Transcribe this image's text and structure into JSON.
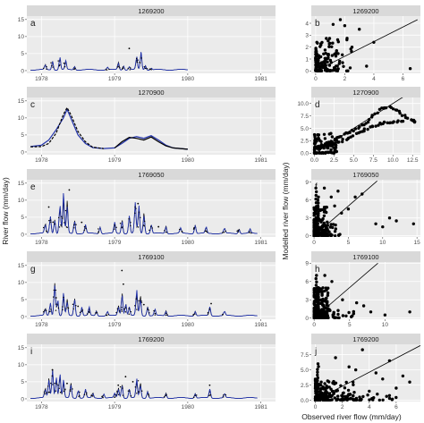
{
  "figure": {
    "left_ylabel": "River flow (mm/day)",
    "right_ylabel": "Modelled river flow (mm/day)",
    "right_xlabel": "Observed river flow (mm/day)"
  },
  "colors": {
    "panel_bg": "#ebebeb",
    "strip_bg": "#d9d9d9",
    "grid": "#ffffff",
    "modelled": "#2233aa",
    "observed": "#000000"
  },
  "chart_data": [
    {
      "type": "line",
      "panel": "a",
      "station": "1269200",
      "xlim": [
        1977.8,
        1981.2
      ],
      "x_ticks": [
        1978,
        1979,
        1980,
        1981
      ],
      "x_tick_labels": [
        "1978",
        "1979",
        "1980",
        "1981"
      ],
      "ylim": [
        -0.8,
        16
      ],
      "y_ticks": [
        0,
        5,
        10,
        15
      ],
      "x_extent": [
        1977.85,
        1980.0
      ],
      "peaks": [
        [
          1978.05,
          1.0
        ],
        [
          1978.15,
          2.0
        ],
        [
          1978.25,
          3.0
        ],
        [
          1978.33,
          2.0
        ],
        [
          1978.45,
          0.8
        ],
        [
          1978.9,
          0.6
        ],
        [
          1979.05,
          1.5
        ],
        [
          1979.12,
          1.0
        ],
        [
          1979.2,
          0.7
        ],
        [
          1979.3,
          3.0
        ],
        [
          1979.36,
          4.0
        ],
        [
          1979.42,
          1.0
        ],
        [
          1979.5,
          0.4
        ]
      ],
      "outliers": [
        [
          1979.2,
          6.5
        ]
      ]
    },
    {
      "type": "line",
      "panel": "c",
      "station": "1270900",
      "xlim": [
        1977.8,
        1981.2
      ],
      "x_ticks": [
        1978,
        1979,
        1980,
        1981
      ],
      "x_tick_labels": [
        "1978",
        "1979",
        "1980",
        "1981"
      ],
      "ylim": [
        -0.8,
        16
      ],
      "y_ticks": [
        0,
        5,
        10,
        15
      ],
      "modelled": [
        [
          1977.85,
          1.6
        ],
        [
          1978.0,
          2.0
        ],
        [
          1978.1,
          3.5
        ],
        [
          1978.2,
          6.5
        ],
        [
          1978.3,
          10.0
        ],
        [
          1978.35,
          12.5
        ],
        [
          1978.4,
          10.0
        ],
        [
          1978.5,
          5.0
        ],
        [
          1978.6,
          2.5
        ],
        [
          1978.7,
          1.3
        ],
        [
          1978.85,
          1.0
        ],
        [
          1979.0,
          1.2
        ],
        [
          1979.1,
          2.5
        ],
        [
          1979.2,
          4.0
        ],
        [
          1979.3,
          4.5
        ],
        [
          1979.4,
          4.0
        ],
        [
          1979.5,
          4.8
        ],
        [
          1979.6,
          3.5
        ],
        [
          1979.7,
          2.0
        ],
        [
          1979.8,
          1.2
        ],
        [
          1980.0,
          0.8
        ]
      ],
      "observed": [
        [
          1977.85,
          1.5
        ],
        [
          1978.0,
          1.6
        ],
        [
          1978.1,
          2.5
        ],
        [
          1978.2,
          5.5
        ],
        [
          1978.3,
          11.0
        ],
        [
          1978.35,
          13.0
        ],
        [
          1978.4,
          11.0
        ],
        [
          1978.5,
          6.0
        ],
        [
          1978.6,
          3.0
        ],
        [
          1978.7,
          1.4
        ],
        [
          1978.85,
          1.0
        ],
        [
          1979.0,
          1.2
        ],
        [
          1979.1,
          3.0
        ],
        [
          1979.2,
          4.3
        ],
        [
          1979.3,
          4.0
        ],
        [
          1979.4,
          3.5
        ],
        [
          1979.5,
          4.4
        ],
        [
          1979.6,
          3.0
        ],
        [
          1979.7,
          1.8
        ],
        [
          1979.8,
          1.2
        ],
        [
          1980.0,
          0.8
        ]
      ],
      "obs_gap": [
        1978.85,
        1979.0
      ]
    },
    {
      "type": "line",
      "panel": "e",
      "station": "1769050",
      "xlim": [
        1977.8,
        1981.2
      ],
      "x_ticks": [
        1978,
        1979,
        1980,
        1981
      ],
      "x_tick_labels": [
        "1978",
        "1979",
        "1980",
        "1981"
      ],
      "ylim": [
        -0.8,
        16
      ],
      "y_ticks": [
        0,
        5,
        10,
        15
      ],
      "x_extent": [
        1977.85,
        1980.95
      ],
      "peaks": [
        [
          1978.05,
          2.0
        ],
        [
          1978.12,
          4.0
        ],
        [
          1978.18,
          3.0
        ],
        [
          1978.25,
          7.0
        ],
        [
          1978.3,
          9.0
        ],
        [
          1978.35,
          6.0
        ],
        [
          1978.45,
          3.0
        ],
        [
          1978.6,
          2.0
        ],
        [
          1978.8,
          1.5
        ],
        [
          1979.0,
          2.5
        ],
        [
          1979.1,
          3.0
        ],
        [
          1979.2,
          4.0
        ],
        [
          1979.28,
          7.0
        ],
        [
          1979.33,
          6.5
        ],
        [
          1979.4,
          4.0
        ],
        [
          1979.5,
          2.0
        ],
        [
          1979.7,
          1.5
        ],
        [
          1979.9,
          1.2
        ],
        [
          1980.1,
          1.8
        ],
        [
          1980.25,
          1.5
        ],
        [
          1980.5,
          1.2
        ],
        [
          1980.7,
          1.0
        ],
        [
          1980.85,
          1.0
        ]
      ],
      "outliers": [
        [
          1978.38,
          13.0
        ],
        [
          1978.1,
          8.0
        ],
        [
          1979.32,
          9.0
        ],
        [
          1978.55,
          3.5
        ],
        [
          1979.6,
          2.2
        ]
      ]
    },
    {
      "type": "line",
      "panel": "g",
      "station": "1769100",
      "xlim": [
        1977.8,
        1981.2
      ],
      "x_ticks": [
        1978,
        1979,
        1980,
        1981
      ],
      "x_tick_labels": [
        "1978",
        "1979",
        "1980",
        "1981"
      ],
      "ylim": [
        -0.8,
        16
      ],
      "y_ticks": [
        0,
        5,
        10,
        15
      ],
      "x_extent": [
        1977.85,
        1980.95
      ],
      "peaks": [
        [
          1978.05,
          1.5
        ],
        [
          1978.12,
          3.0
        ],
        [
          1978.18,
          7.0
        ],
        [
          1978.22,
          4.0
        ],
        [
          1978.3,
          5.0
        ],
        [
          1978.35,
          3.0
        ],
        [
          1978.45,
          4.0
        ],
        [
          1978.55,
          2.0
        ],
        [
          1978.65,
          2.0
        ],
        [
          1978.75,
          1.0
        ],
        [
          1978.9,
          1.0
        ],
        [
          1979.05,
          2.0
        ],
        [
          1979.1,
          5.0
        ],
        [
          1979.15,
          3.0
        ],
        [
          1979.2,
          2.0
        ],
        [
          1979.3,
          6.0
        ],
        [
          1979.35,
          4.0
        ],
        [
          1979.45,
          2.0
        ],
        [
          1979.55,
          1.5
        ],
        [
          1979.7,
          1.0
        ],
        [
          1980.1,
          1.0
        ],
        [
          1980.3,
          2.0
        ],
        [
          1980.5,
          1.0
        ]
      ],
      "outliers": [
        [
          1979.1,
          13.5
        ],
        [
          1979.12,
          9.5
        ],
        [
          1978.2,
          5.5
        ],
        [
          1978.5,
          3.0
        ],
        [
          1980.32,
          3.8
        ],
        [
          1979.4,
          3.5
        ]
      ]
    },
    {
      "type": "line",
      "panel": "i",
      "station": "1769200",
      "xlim": [
        1977.8,
        1981.2
      ],
      "x_ticks": [
        1978,
        1979,
        1980,
        1981
      ],
      "x_tick_labels": [
        "1978",
        "1979",
        "1980",
        "1981"
      ],
      "ylim": [
        -0.8,
        16
      ],
      "y_ticks": [
        0,
        5,
        10,
        15
      ],
      "x_extent": [
        1977.85,
        1980.95
      ],
      "peaks": [
        [
          1978.05,
          2.0
        ],
        [
          1978.1,
          4.0
        ],
        [
          1978.15,
          6.5
        ],
        [
          1978.2,
          5.0
        ],
        [
          1978.25,
          6.0
        ],
        [
          1978.3,
          4.0
        ],
        [
          1978.4,
          3.0
        ],
        [
          1978.5,
          2.0
        ],
        [
          1978.6,
          2.0
        ],
        [
          1978.7,
          1.0
        ],
        [
          1978.85,
          1.0
        ],
        [
          1979.0,
          1.0
        ],
        [
          1979.05,
          2.0
        ],
        [
          1979.1,
          3.0
        ],
        [
          1979.2,
          2.0
        ],
        [
          1979.3,
          4.5
        ],
        [
          1979.35,
          3.0
        ],
        [
          1979.45,
          1.5
        ],
        [
          1979.7,
          1.0
        ],
        [
          1980.1,
          1.0
        ],
        [
          1980.3,
          2.0
        ],
        [
          1980.5,
          1.0
        ]
      ],
      "outliers": [
        [
          1978.15,
          8.5
        ],
        [
          1979.15,
          6.5
        ],
        [
          1979.25,
          5.0
        ],
        [
          1978.35,
          4.5
        ],
        [
          1980.3,
          4.0
        ],
        [
          1979.05,
          4.0
        ]
      ]
    },
    {
      "type": "scatter",
      "panel": "b",
      "station": "1269200",
      "xlim": [
        -0.3,
        7.2
      ],
      "x_ticks": [
        0,
        2,
        4,
        6
      ],
      "ylim": [
        -0.2,
        4.6
      ],
      "y_ticks": [
        0,
        1,
        2,
        3,
        4
      ],
      "line_end": [
        7.0,
        4.3
      ],
      "cloud": [
        {
          "x": [
            0,
            2.5
          ],
          "y": [
            0,
            3.0
          ],
          "n": 100
        },
        {
          "x": [
            0,
            1
          ],
          "y": [
            0,
            1.5
          ],
          "n": 60
        }
      ],
      "points": [
        [
          3.0,
          3.5
        ],
        [
          1.7,
          4.3
        ],
        [
          2.5,
          2.0
        ],
        [
          2.0,
          3.8
        ],
        [
          1.2,
          3.9
        ],
        [
          6.5,
          0.2
        ],
        [
          4.0,
          2.4
        ],
        [
          3.5,
          0.4
        ]
      ]
    },
    {
      "type": "scatter",
      "panel": "d",
      "station": "1270900",
      "xlim": [
        -0.4,
        13.5
      ],
      "x_ticks": [
        0,
        2.5,
        5,
        7.5,
        10,
        12.5
      ],
      "x_tick_labels": [
        "0.0",
        "2.5",
        "5.0",
        "7.5",
        "10.0",
        "12.5"
      ],
      "ylim": [
        -0.3,
        11.2
      ],
      "y_ticks": [
        0,
        2.5,
        5,
        7.5,
        10
      ],
      "y_tick_labels": [
        "0.0",
        "2.5",
        "5.0",
        "7.5",
        "10.0"
      ],
      "line_end": [
        11.5,
        11.5
      ],
      "curve": [
        [
          0.2,
          1.2
        ],
        [
          0.8,
          1.4
        ],
        [
          1.5,
          2.0
        ],
        [
          2.5,
          2.8
        ],
        [
          3.5,
          3.5
        ],
        [
          4.5,
          4.3
        ],
        [
          5.5,
          5.0
        ],
        [
          6.5,
          6.0
        ],
        [
          7.5,
          7.5
        ],
        [
          8.5,
          9.0
        ],
        [
          9.5,
          9.3
        ],
        [
          10.5,
          8.5
        ],
        [
          11.5,
          7.5
        ],
        [
          12.5,
          6.5
        ],
        [
          13.0,
          6.3
        ]
      ],
      "curve2": [
        [
          0.5,
          0.8
        ],
        [
          1.5,
          1.2
        ],
        [
          2.5,
          1.8
        ],
        [
          3.5,
          2.5
        ],
        [
          4.5,
          3.2
        ],
        [
          5.5,
          4.0
        ],
        [
          6.5,
          4.8
        ],
        [
          7.5,
          5.5
        ],
        [
          8.5,
          6.0
        ],
        [
          9.5,
          6.2
        ],
        [
          10.5,
          6.3
        ],
        [
          11.5,
          6.4
        ]
      ],
      "cloud": [
        {
          "x": [
            0,
            3
          ],
          "y": [
            0,
            4
          ],
          "n": 80
        }
      ]
    },
    {
      "type": "scatter",
      "panel": "f",
      "station": "1769050",
      "xlim": [
        -0.4,
        15.5
      ],
      "x_ticks": [
        0,
        5,
        10,
        15
      ],
      "ylim": [
        -0.2,
        9.4
      ],
      "y_ticks": [
        0,
        3,
        6,
        9
      ],
      "line_end": [
        9.2,
        9.2
      ],
      "cloud": [
        {
          "x": [
            0,
            2
          ],
          "y": [
            0,
            5
          ],
          "n": 150
        },
        {
          "x": [
            0,
            4
          ],
          "y": [
            0,
            2
          ],
          "n": 60
        }
      ],
      "points": [
        [
          1.5,
          8.0
        ],
        [
          2.5,
          6.5
        ],
        [
          3.0,
          5.0
        ],
        [
          4.0,
          3.8
        ],
        [
          6.0,
          6.5
        ],
        [
          7.0,
          7.0
        ],
        [
          9.0,
          2.0
        ],
        [
          10.0,
          1.5
        ],
        [
          12.0,
          2.5
        ],
        [
          14.5,
          2.0
        ],
        [
          11.0,
          3.0
        ],
        [
          5.0,
          4.5
        ],
        [
          3.5,
          7.5
        ]
      ],
      "verticals": [
        [
          0.3,
          8.0
        ],
        [
          0.6,
          6.5
        ]
      ]
    },
    {
      "type": "scatter",
      "panel": "h",
      "station": "1769100",
      "xlim": [
        -0.4,
        15.0
      ],
      "x_ticks": [
        0,
        5,
        10
      ],
      "ylim": [
        -0.2,
        9.2
      ],
      "y_ticks": [
        0,
        3,
        6,
        9
      ],
      "line_end": [
        9.0,
        9.0
      ],
      "cloud": [
        {
          "x": [
            0,
            2
          ],
          "y": [
            0,
            5
          ],
          "n": 150
        },
        {
          "x": [
            0,
            6
          ],
          "y": [
            0,
            1.5
          ],
          "n": 60
        }
      ],
      "points": [
        [
          1.5,
          7.0
        ],
        [
          2.5,
          6.0
        ],
        [
          4.0,
          3.0
        ],
        [
          6.0,
          2.5
        ],
        [
          13.5,
          1.0
        ],
        [
          8.0,
          1.0
        ],
        [
          10.0,
          0.5
        ],
        [
          7.0,
          2.0
        ]
      ],
      "verticals": [
        [
          0.3,
          7.0
        ],
        [
          0.6,
          5.0
        ]
      ]
    },
    {
      "type": "scatter",
      "panel": "j",
      "station": "1769200",
      "xlim": [
        -0.3,
        7.8
      ],
      "x_ticks": [
        0,
        2,
        4,
        6
      ],
      "ylim": [
        -0.2,
        9.2
      ],
      "y_ticks": [
        0,
        2.5,
        5,
        7.5
      ],
      "y_tick_labels": [
        "0.0",
        "2.5",
        "5.0",
        "7.5"
      ],
      "line_end": [
        7.8,
        9.0
      ],
      "cloud": [
        {
          "x": [
            0,
            3.5
          ],
          "y": [
            0,
            3.5
          ],
          "n": 140
        },
        {
          "x": [
            0,
            6
          ],
          "y": [
            0,
            1.2
          ],
          "n": 60
        }
      ],
      "points": [
        [
          3.5,
          8.3
        ],
        [
          5.5,
          6.5
        ],
        [
          4.5,
          4.5
        ],
        [
          6.5,
          4.0
        ],
        [
          7.0,
          3.0
        ],
        [
          2.5,
          5.5
        ],
        [
          1.5,
          7.0
        ],
        [
          6.0,
          2.0
        ],
        [
          5.0,
          3.5
        ],
        [
          4.0,
          1.5
        ],
        [
          3.0,
          5.0
        ]
      ],
      "verticals": [
        [
          0.2,
          6.0
        ]
      ]
    }
  ]
}
